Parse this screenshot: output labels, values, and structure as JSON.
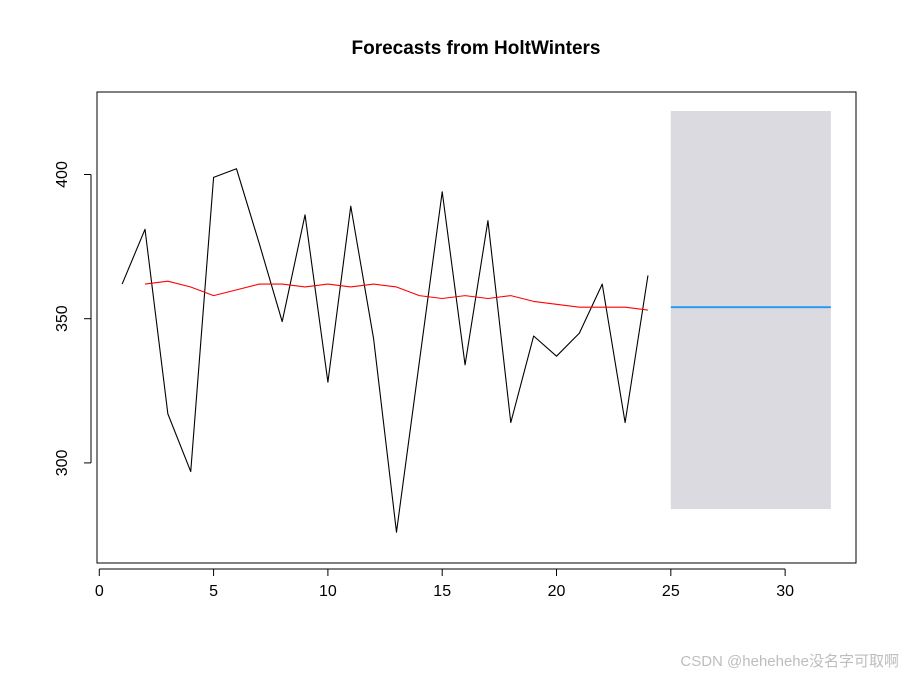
{
  "chart_data": {
    "type": "line",
    "title": "Forecasts from HoltWinters",
    "xlabel": "",
    "ylabel": "",
    "xlim": [
      -0.1,
      33.1
    ],
    "ylim": [
      265.3,
      428.6
    ],
    "x_ticks": [
      0,
      5,
      10,
      15,
      20,
      25,
      30
    ],
    "y_ticks": [
      300,
      350,
      400
    ],
    "grid": false,
    "observed": {
      "color": "#000000",
      "x": [
        1,
        2,
        3,
        4,
        5,
        6,
        7,
        8,
        9,
        10,
        11,
        12,
        13,
        14,
        15,
        16,
        17,
        18,
        19,
        20,
        21,
        22,
        23,
        24
      ],
      "values": [
        362,
        381,
        317,
        297,
        399,
        402,
        376,
        349,
        386,
        328,
        389,
        343,
        276,
        335,
        394,
        334,
        384,
        314,
        344,
        337,
        345,
        362,
        314,
        365
      ]
    },
    "fitted": {
      "color": "#ff0000",
      "x": [
        2,
        3,
        4,
        5,
        6,
        7,
        8,
        9,
        10,
        11,
        12,
        13,
        14,
        15,
        16,
        17,
        18,
        19,
        20,
        21,
        22,
        23,
        24
      ],
      "values": [
        362,
        363,
        361,
        358,
        360,
        362,
        362,
        361,
        362,
        361,
        362,
        361,
        358,
        357,
        358,
        357,
        358,
        356,
        355,
        354,
        354,
        354,
        353
      ]
    },
    "forecast": {
      "color": "#2196f3",
      "x": [
        25,
        32
      ],
      "values": [
        354,
        354
      ]
    },
    "forecast_interval": {
      "color": "#dadae0",
      "x": [
        25,
        32
      ],
      "lower": [
        284,
        284
      ],
      "upper": [
        422,
        422
      ]
    }
  },
  "watermark": "CSDN @hehehehe没名字可取啊"
}
